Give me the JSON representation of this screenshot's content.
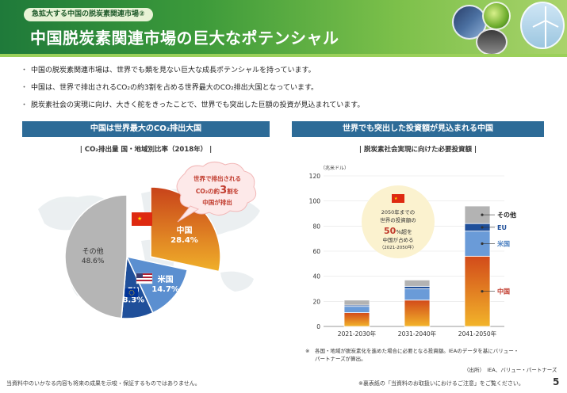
{
  "header": {
    "subtitle": "急拡大する中国の脱炭素関連市場②",
    "title": "中国脱炭素関連市場の巨大なポテンシャル"
  },
  "bullets": [
    "中国の脱炭素関連市場は、世界でも類を見ない巨大な成長ポテンシャルを持っています。",
    "中国は、世界で排出されるCO₂の約3割を占める世界最大のCO₂排出大国となっています。",
    "脱炭素社会の実現に向け、大きく舵をきったことで、世界でも突出した巨額の投資が見込まれています。"
  ],
  "left_panel": {
    "heading": "中国は世界最大のCO₂排出大国",
    "subheading": "| CO₂排出量  国・地域別比率（2018年） |",
    "callout_line1": "世界で排出される",
    "callout_line2_pre": "CO₂の約",
    "callout_line2_num": "3",
    "callout_line2_post": "割を",
    "callout_line3": "中国が排出"
  },
  "right_panel": {
    "heading": "世界でも突出した投資額が見込まれる中国",
    "subheading": "| 脱炭素社会実現に向けた必要投資額 |",
    "bubble_line1": "2050年までの",
    "bubble_line2": "世界の投資額の",
    "bubble_num": "50",
    "bubble_line3_post": "%超を",
    "bubble_line4": "中国が占める",
    "bubble_line5": "（2021-2050年）",
    "note_line1": "※　各国・地域が脱炭素化を進めた場合に必要となる投資額。IEAのデータを基にバリュー・",
    "note_line2": "パートナーズが算出。",
    "source": "（出所）　IEA、バリュー・パートナーズ"
  },
  "chart_data": [
    {
      "type": "pie",
      "title": "CO₂排出量  国・地域別比率（2018年）",
      "slices": [
        {
          "name": "中国",
          "value": 28.4,
          "label": "28.4%",
          "color": "#e08a1e"
        },
        {
          "name": "米国",
          "value": 14.7,
          "label": "14.7%",
          "color": "#5b8fd0"
        },
        {
          "name": "EU",
          "value": 8.3,
          "label": "8.3%",
          "color": "#1f4f9a"
        },
        {
          "name": "その他",
          "value": 48.6,
          "label": "48.6%",
          "color": "#b5b5b5"
        }
      ]
    },
    {
      "type": "bar",
      "stacked": true,
      "title": "脱炭素社会実現に向けた必要投資額",
      "ylabel": "（兆米ドル）",
      "ylim": [
        0,
        120
      ],
      "yticks": [
        0,
        20,
        40,
        60,
        80,
        100,
        120
      ],
      "categories": [
        "2021-2030年",
        "2031-2040年",
        "2041-2050年"
      ],
      "series": [
        {
          "name": "中国",
          "color": "#d85a1a",
          "values": [
            11,
            21,
            56
          ]
        },
        {
          "name": "米国",
          "color": "#6a9bd8",
          "values": [
            5,
            9,
            20
          ]
        },
        {
          "name": "EU",
          "color": "#1f4f9a",
          "values": [
            1,
            2,
            6
          ]
        },
        {
          "name": "その他",
          "color": "#b3b3b3",
          "values": [
            4,
            5,
            14
          ]
        }
      ]
    }
  ],
  "footer": {
    "left": "当資料中のいかなる内容も将来の成果を示唆・保証するものではありません。",
    "right": "※裏表紙の「当資料のお取扱いにおけるご注意」をご覧ください。",
    "page": "5"
  }
}
